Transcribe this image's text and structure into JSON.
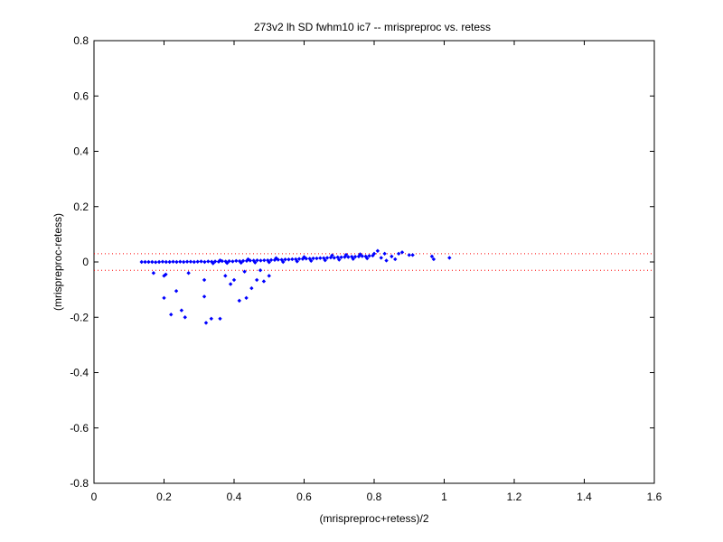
{
  "chart_data": {
    "type": "scatter",
    "title": "273v2 lh SD fwhm10 ic7 -- mrispreproc vs. retess",
    "xlabel": "(mrispreproc+retess)/2",
    "ylabel": "(mrispreproc-retess)",
    "xlim": [
      0,
      1.6
    ],
    "ylim": [
      -0.8,
      0.8
    ],
    "xticks": [
      0,
      0.2,
      0.4,
      0.6,
      0.8,
      1,
      1.2,
      1.4,
      1.6
    ],
    "xtick_labels": [
      "0",
      "0.2",
      "0.4",
      "0.6",
      "0.8",
      "1",
      "1.2",
      "1.4",
      "1.6"
    ],
    "yticks": [
      -0.8,
      -0.6,
      -0.4,
      -0.2,
      0,
      0.2,
      0.4,
      0.6,
      0.8
    ],
    "ytick_labels": [
      "-0.8",
      "-0.6",
      "-0.4",
      "-0.2",
      "0",
      "0.2",
      "0.4",
      "0.6",
      "0.8"
    ],
    "grid": false,
    "marker_color": "#0000ff",
    "reference_line_color": "#ff0000",
    "reference_lines_y": [
      0.03,
      -0.03
    ],
    "points": [
      [
        0.136,
        0.0
      ],
      [
        0.146,
        0.0
      ],
      [
        0.156,
        0.0
      ],
      [
        0.166,
        0.0
      ],
      [
        0.176,
        -0.001
      ],
      [
        0.186,
        0.0
      ],
      [
        0.196,
        0.001
      ],
      [
        0.206,
        0.0
      ],
      [
        0.216,
        0.0
      ],
      [
        0.226,
        0.001
      ],
      [
        0.236,
        0.0
      ],
      [
        0.246,
        0.001
      ],
      [
        0.256,
        0.0
      ],
      [
        0.266,
        0.001
      ],
      [
        0.276,
        0.001
      ],
      [
        0.286,
        0.0
      ],
      [
        0.296,
        0.001
      ],
      [
        0.306,
        0.002
      ],
      [
        0.316,
        0.0
      ],
      [
        0.326,
        0.002
      ],
      [
        0.336,
        0.001
      ],
      [
        0.346,
        0.002
      ],
      [
        0.356,
        0.001
      ],
      [
        0.366,
        0.003
      ],
      [
        0.376,
        0.002
      ],
      [
        0.386,
        0.003
      ],
      [
        0.396,
        0.002
      ],
      [
        0.406,
        0.004
      ],
      [
        0.416,
        0.003
      ],
      [
        0.426,
        0.004
      ],
      [
        0.436,
        0.004
      ],
      [
        0.446,
        0.005
      ],
      [
        0.456,
        0.005
      ],
      [
        0.466,
        0.006
      ],
      [
        0.476,
        0.005
      ],
      [
        0.486,
        0.006
      ],
      [
        0.496,
        0.006
      ],
      [
        0.506,
        0.007
      ],
      [
        0.516,
        0.007
      ],
      [
        0.526,
        0.008
      ],
      [
        0.536,
        0.008
      ],
      [
        0.546,
        0.009
      ],
      [
        0.556,
        0.009
      ],
      [
        0.566,
        0.01
      ],
      [
        0.576,
        0.01
      ],
      [
        0.586,
        0.011
      ],
      [
        0.596,
        0.011
      ],
      [
        0.606,
        0.012
      ],
      [
        0.616,
        0.012
      ],
      [
        0.626,
        0.013
      ],
      [
        0.636,
        0.013
      ],
      [
        0.646,
        0.014
      ],
      [
        0.656,
        0.014
      ],
      [
        0.666,
        0.015
      ],
      [
        0.676,
        0.016
      ],
      [
        0.686,
        0.015
      ],
      [
        0.696,
        0.017
      ],
      [
        0.706,
        0.017
      ],
      [
        0.716,
        0.018
      ],
      [
        0.726,
        0.018
      ],
      [
        0.736,
        0.019
      ],
      [
        0.746,
        0.019
      ],
      [
        0.756,
        0.02
      ],
      [
        0.766,
        0.021
      ],
      [
        0.776,
        0.02
      ],
      [
        0.786,
        0.022
      ],
      [
        0.796,
        0.023
      ],
      [
        0.34,
        -0.005
      ],
      [
        0.38,
        -0.004
      ],
      [
        0.42,
        -0.003
      ],
      [
        0.46,
        -0.002
      ],
      [
        0.5,
        -0.001
      ],
      [
        0.54,
        0.0
      ],
      [
        0.58,
        0.002
      ],
      [
        0.62,
        0.004
      ],
      [
        0.66,
        0.006
      ],
      [
        0.7,
        0.008
      ],
      [
        0.74,
        0.011
      ],
      [
        0.78,
        0.013
      ],
      [
        0.36,
        0.006
      ],
      [
        0.44,
        0.01
      ],
      [
        0.52,
        0.014
      ],
      [
        0.6,
        0.018
      ],
      [
        0.68,
        0.024
      ],
      [
        0.72,
        0.026
      ],
      [
        0.76,
        0.028
      ],
      [
        0.8,
        0.03
      ],
      [
        0.17,
        -0.04
      ],
      [
        0.2,
        -0.05
      ],
      [
        0.205,
        -0.045
      ],
      [
        0.2,
        -0.13
      ],
      [
        0.22,
        -0.19
      ],
      [
        0.235,
        -0.105
      ],
      [
        0.25,
        -0.175
      ],
      [
        0.26,
        -0.2
      ],
      [
        0.27,
        -0.04
      ],
      [
        0.315,
        -0.065
      ],
      [
        0.315,
        -0.125
      ],
      [
        0.32,
        -0.22
      ],
      [
        0.335,
        -0.205
      ],
      [
        0.36,
        -0.205
      ],
      [
        0.375,
        -0.05
      ],
      [
        0.39,
        -0.08
      ],
      [
        0.4,
        -0.065
      ],
      [
        0.415,
        -0.14
      ],
      [
        0.43,
        -0.035
      ],
      [
        0.435,
        -0.13
      ],
      [
        0.45,
        -0.095
      ],
      [
        0.465,
        -0.065
      ],
      [
        0.475,
        -0.03
      ],
      [
        0.485,
        -0.07
      ],
      [
        0.5,
        -0.05
      ],
      [
        0.81,
        0.04
      ],
      [
        0.82,
        0.015
      ],
      [
        0.83,
        0.03
      ],
      [
        0.835,
        0.005
      ],
      [
        0.85,
        0.02
      ],
      [
        0.86,
        0.01
      ],
      [
        0.87,
        0.03
      ],
      [
        0.88,
        0.035
      ],
      [
        0.9,
        0.025
      ],
      [
        0.91,
        0.025
      ],
      [
        0.965,
        0.02
      ],
      [
        0.97,
        0.01
      ],
      [
        1.015,
        0.015
      ]
    ]
  }
}
